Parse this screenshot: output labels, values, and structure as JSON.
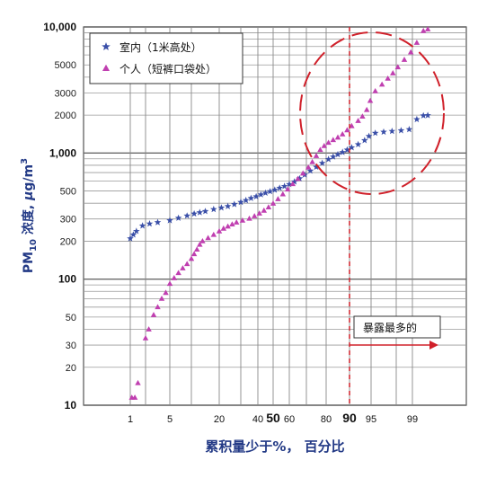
{
  "chart_data": {
    "type": "scatter",
    "xlabel": "累积量少于%， 百分比",
    "ylabel": {
      "prefix": "PM",
      "sub": "10",
      "mid": " 浓度, ",
      "mu": "μ",
      "unit": "g/m",
      "sup": "3"
    },
    "x_scale": "probability",
    "y_scale": "log",
    "ylim": [
      10,
      10000
    ],
    "y_ticks": [
      {
        "value": 10,
        "label": "10",
        "major": true
      },
      {
        "value": 20,
        "label": "20",
        "major": false
      },
      {
        "value": 30,
        "label": "30",
        "major": false
      },
      {
        "value": 50,
        "label": "50",
        "major": false
      },
      {
        "value": 100,
        "label": "100",
        "major": true
      },
      {
        "value": 200,
        "label": "200",
        "major": false
      },
      {
        "value": 300,
        "label": "300",
        "major": false
      },
      {
        "value": 500,
        "label": "500",
        "major": false
      },
      {
        "value": 1000,
        "label": "1,000",
        "major": true
      },
      {
        "value": 2000,
        "label": "2000",
        "major": false
      },
      {
        "value": 3000,
        "label": "3000",
        "major": false
      },
      {
        "value": 5000,
        "label": "5000",
        "major": false
      },
      {
        "value": 10000,
        "label": "10,000",
        "major": true
      }
    ],
    "y_minor_lines": [
      20,
      30,
      40,
      50,
      60,
      70,
      80,
      90,
      200,
      300,
      400,
      500,
      600,
      700,
      800,
      900,
      2000,
      3000,
      4000,
      5000,
      6000,
      7000,
      8000,
      9000
    ],
    "x_ticks": [
      {
        "value": 1,
        "label": "1"
      },
      {
        "value": 5,
        "label": "5"
      },
      {
        "value": 20,
        "label": "20"
      },
      {
        "value": 40,
        "label": "40"
      },
      {
        "value": 50,
        "label": "50",
        "highlight": true,
        "color": "#3a55b0"
      },
      {
        "value": 60,
        "label": "60"
      },
      {
        "value": 80,
        "label": "80"
      },
      {
        "value": 90,
        "label": "90",
        "highlight": true,
        "color": "#d0202a"
      },
      {
        "value": 95,
        "label": "95"
      },
      {
        "value": 99,
        "label": "99"
      }
    ],
    "x_grid": [
      1,
      2,
      5,
      10,
      20,
      30,
      40,
      50,
      60,
      70,
      80,
      90,
      95,
      98,
      99
    ],
    "legend_position": "top-left",
    "series": [
      {
        "name": "室内（1米高处）",
        "color": "#3a4fa8",
        "marker": "star",
        "points": [
          [
            1.0,
            210
          ],
          [
            1.2,
            225
          ],
          [
            1.4,
            240
          ],
          [
            1.8,
            265
          ],
          [
            2.5,
            275
          ],
          [
            3.5,
            282
          ],
          [
            5,
            292
          ],
          [
            7,
            305
          ],
          [
            9,
            318
          ],
          [
            11,
            330
          ],
          [
            13,
            338
          ],
          [
            15,
            345
          ],
          [
            18,
            358
          ],
          [
            21,
            368
          ],
          [
            24,
            378
          ],
          [
            27,
            392
          ],
          [
            30,
            408
          ],
          [
            33,
            422
          ],
          [
            36,
            438
          ],
          [
            39,
            452
          ],
          [
            42,
            468
          ],
          [
            45,
            482
          ],
          [
            48,
            496
          ],
          [
            51,
            510
          ],
          [
            54,
            528
          ],
          [
            57,
            545
          ],
          [
            60,
            565
          ],
          [
            63,
            592
          ],
          [
            66,
            628
          ],
          [
            69,
            672
          ],
          [
            72,
            722
          ],
          [
            75,
            775
          ],
          [
            78,
            832
          ],
          [
            81,
            892
          ],
          [
            83,
            935
          ],
          [
            85,
            975
          ],
          [
            87,
            1015
          ],
          [
            89,
            1060
          ],
          [
            90.5,
            1105
          ],
          [
            92,
            1170
          ],
          [
            93.5,
            1260
          ],
          [
            94.5,
            1360
          ],
          [
            95.5,
            1440
          ],
          [
            96.5,
            1470
          ],
          [
            97.5,
            1490
          ],
          [
            98.3,
            1510
          ],
          [
            98.8,
            1540
          ],
          [
            99.2,
            1850
          ],
          [
            99.5,
            1980
          ],
          [
            99.7,
            1990
          ]
        ]
      },
      {
        "name": "个人（短裤口袋处）",
        "color": "#c03fb0",
        "marker": "triangle",
        "points": [
          [
            1.1,
            11.5
          ],
          [
            1.3,
            11.5
          ],
          [
            1.5,
            15
          ],
          [
            2.0,
            34
          ],
          [
            2.4,
            40
          ],
          [
            3.0,
            52
          ],
          [
            3.5,
            60
          ],
          [
            4.0,
            70
          ],
          [
            4.5,
            78
          ],
          [
            5.0,
            92
          ],
          [
            6,
            102
          ],
          [
            7,
            112
          ],
          [
            8,
            122
          ],
          [
            9,
            132
          ],
          [
            10,
            145
          ],
          [
            11,
            158
          ],
          [
            12,
            172
          ],
          [
            13,
            188
          ],
          [
            14,
            200
          ],
          [
            16,
            212
          ],
          [
            18,
            225
          ],
          [
            20,
            240
          ],
          [
            22,
            252
          ],
          [
            24,
            262
          ],
          [
            26,
            272
          ],
          [
            28,
            282
          ],
          [
            31,
            292
          ],
          [
            35,
            302
          ],
          [
            38,
            316
          ],
          [
            41,
            332
          ],
          [
            44,
            350
          ],
          [
            47,
            372
          ],
          [
            50,
            398
          ],
          [
            53,
            432
          ],
          [
            56,
            472
          ],
          [
            59,
            515
          ],
          [
            62,
            568
          ],
          [
            65,
            625
          ],
          [
            68,
            690
          ],
          [
            71,
            770
          ],
          [
            73,
            850
          ],
          [
            75,
            950
          ],
          [
            77,
            1060
          ],
          [
            79,
            1140
          ],
          [
            81,
            1210
          ],
          [
            83,
            1270
          ],
          [
            85,
            1330
          ],
          [
            87,
            1410
          ],
          [
            89,
            1520
          ],
          [
            90.5,
            1640
          ],
          [
            92,
            1800
          ],
          [
            93,
            1950
          ],
          [
            94,
            2200
          ],
          [
            94.8,
            2600
          ],
          [
            95.5,
            3100
          ],
          [
            96.3,
            3500
          ],
          [
            97,
            3900
          ],
          [
            97.6,
            4300
          ],
          [
            98.1,
            4800
          ],
          [
            98.5,
            5500
          ],
          [
            98.9,
            6300
          ],
          [
            99.2,
            7500
          ],
          [
            99.5,
            9300
          ],
          [
            99.7,
            9600
          ]
        ]
      }
    ],
    "reference_line": {
      "x": 90,
      "color": "#d0202a"
    },
    "annotation": {
      "text": "暴露最多的",
      "color": "#d0202a"
    },
    "highlight_ellipse": {
      "color": "#d0202a"
    }
  }
}
